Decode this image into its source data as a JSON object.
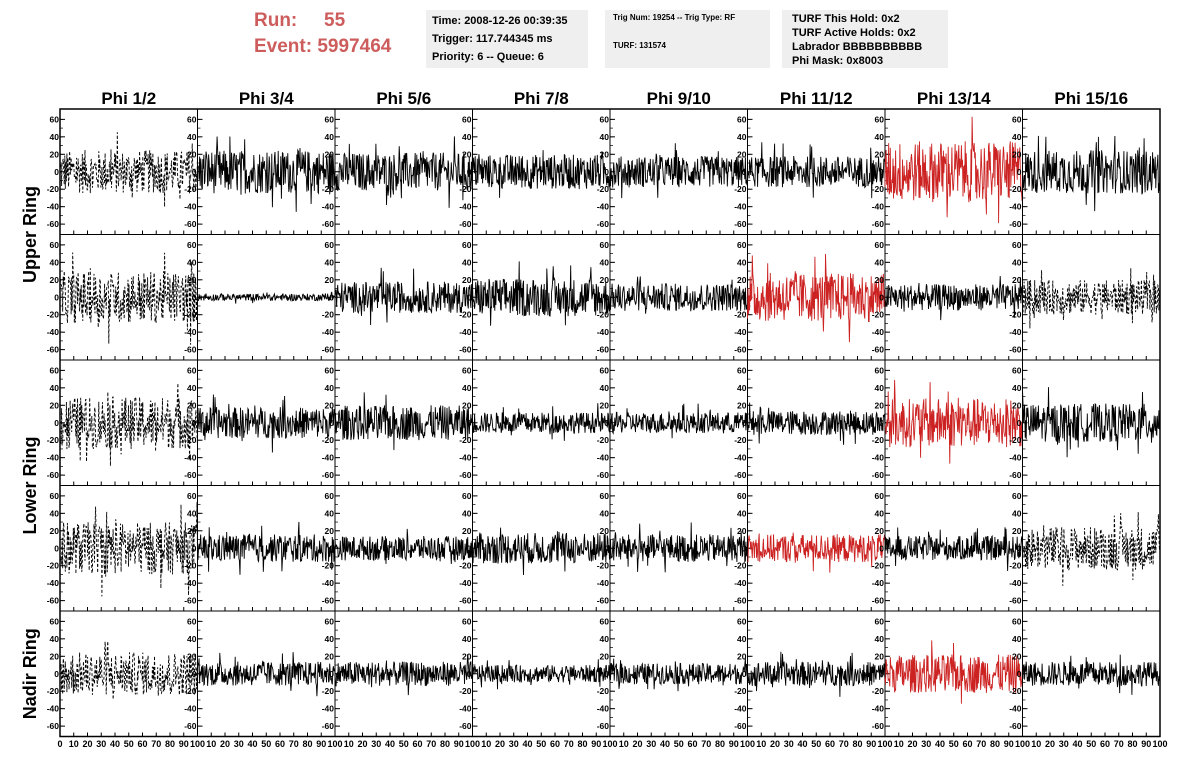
{
  "header": {
    "run_label": "Run:",
    "run_value": "55",
    "event_label": "Event:",
    "event_value": "5997464"
  },
  "time_box": {
    "time": "Time: 2008-12-26 00:39:35",
    "trigger": "Trigger: 117.744345 ms",
    "priority": "Priority: 6 -- Queue: 6"
  },
  "trig_box": {
    "trig": "Trig Num: 19254 -- Trig Type: RF",
    "turf": "TURF: 131574"
  },
  "turf_box": {
    "this_hold": "TURF This Hold: 0x2",
    "active_holds": "TURF Active Holds: 0x2",
    "labrador": "Labrador BBBBBBBBBB",
    "phi_mask": "Phi Mask: 0x8003"
  },
  "colors": {
    "trace": "#000000",
    "highlight": "#cc2222",
    "header_text": "#cd5c5c",
    "box_bg": "#efefef"
  },
  "chart_data": {
    "type": "line",
    "columns": [
      "Phi 1/2",
      "Phi 3/4",
      "Phi 5/6",
      "Phi 7/8",
      "Phi 9/10",
      "Phi 11/12",
      "Phi 13/14",
      "Phi 15/16"
    ],
    "rows": [
      "Upper Ring",
      "Upper Ring",
      "Lower Ring",
      "Lower Ring",
      "Nadir Ring"
    ],
    "row_labels": [
      {
        "label": "Upper Ring",
        "rows": [
          0,
          1
        ]
      },
      {
        "label": "Lower Ring",
        "rows": [
          2,
          3
        ]
      },
      {
        "label": "Nadir Ring",
        "rows": [
          4,
          4
        ]
      }
    ],
    "xlim": [
      0,
      100
    ],
    "ylim": [
      -65,
      65
    ],
    "x_ticks": [
      0,
      10,
      20,
      30,
      40,
      50,
      60,
      70,
      80,
      90,
      100
    ],
    "x_tick_labels": [
      "0",
      "10",
      "20",
      "30",
      "40",
      "50",
      "60",
      "70",
      "80",
      "90",
      "100"
    ],
    "y_ticks": [
      -60,
      -40,
      -20,
      0,
      20,
      40,
      60
    ],
    "y_tick_labels": [
      "-60",
      "-40",
      "-20",
      "0",
      "20",
      "40",
      "60"
    ],
    "grid": false,
    "panel_style": [
      [
        "dashed",
        "solid",
        "solid",
        "solid",
        "solid",
        "solid",
        "highlight",
        "solid"
      ],
      [
        "dashed",
        "solid",
        "solid",
        "solid",
        "solid",
        "highlight",
        "solid",
        "dashed"
      ],
      [
        "dashed",
        "solid",
        "solid",
        "solid",
        "solid",
        "solid",
        "highlight",
        "solid"
      ],
      [
        "dashed",
        "solid",
        "solid",
        "solid",
        "solid",
        "highlight",
        "solid",
        "dashed"
      ],
      [
        "dashed",
        "solid",
        "solid",
        "solid",
        "solid",
        "solid",
        "highlight",
        "solid"
      ]
    ],
    "panel_amplitude": [
      [
        25,
        25,
        22,
        20,
        18,
        18,
        35,
        25
      ],
      [
        30,
        4,
        18,
        22,
        16,
        28,
        15,
        20
      ],
      [
        30,
        18,
        20,
        12,
        12,
        14,
        28,
        22
      ],
      [
        30,
        16,
        14,
        18,
        16,
        16,
        14,
        25
      ],
      [
        25,
        14,
        14,
        10,
        12,
        14,
        22,
        14
      ]
    ],
    "samples_per_trace": 260
  }
}
